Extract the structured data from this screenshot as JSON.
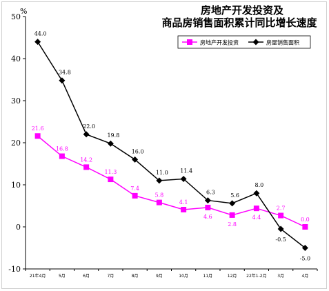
{
  "title_line1": "房地产开发投资及",
  "title_line2": "商品房销售面积累计同比增长速度",
  "y_unit": "%",
  "chart_data": {
    "type": "line",
    "title": "房地产开发投资及商品房销售面积累计同比增长速度",
    "ylabel": "%",
    "ylim": [
      -10,
      50
    ],
    "yticks": [
      -10,
      0,
      10,
      20,
      30,
      40,
      50
    ],
    "grid": false,
    "legend_position": "top-right",
    "categories": [
      "21年4月",
      "5月",
      "6月",
      "7月",
      "8月",
      "9月",
      "10月",
      "11月",
      "12月",
      "22年1-2月",
      "3月",
      "4月"
    ],
    "series": [
      {
        "name": "房地产开发投资",
        "color": "#ff00ff",
        "marker": "square",
        "values": [
          21.6,
          16.8,
          14.2,
          11.3,
          7.4,
          5.8,
          4.1,
          4.6,
          2.8,
          4.4,
          2.7,
          0.0
        ],
        "labels": [
          "21.6",
          "16.8",
          "14.2",
          "11.3",
          "7.4",
          "5.8",
          "4.1",
          "4.6",
          "2.8",
          "4.4",
          "2.7",
          "0.0"
        ]
      },
      {
        "name": "房屋销售面积",
        "color": "#000000",
        "marker": "diamond",
        "values": [
          44.0,
          34.8,
          22.0,
          19.8,
          16.0,
          11.0,
          11.4,
          6.3,
          5.6,
          8.0,
          -0.5,
          -5.0
        ],
        "labels": [
          "44.0",
          "34.8",
          "22.0",
          "19.8",
          "16.0",
          "11.0",
          "11.4",
          "6.3",
          "5.6",
          "8.0",
          "-0.5",
          "-5.0"
        ]
      }
    ]
  }
}
